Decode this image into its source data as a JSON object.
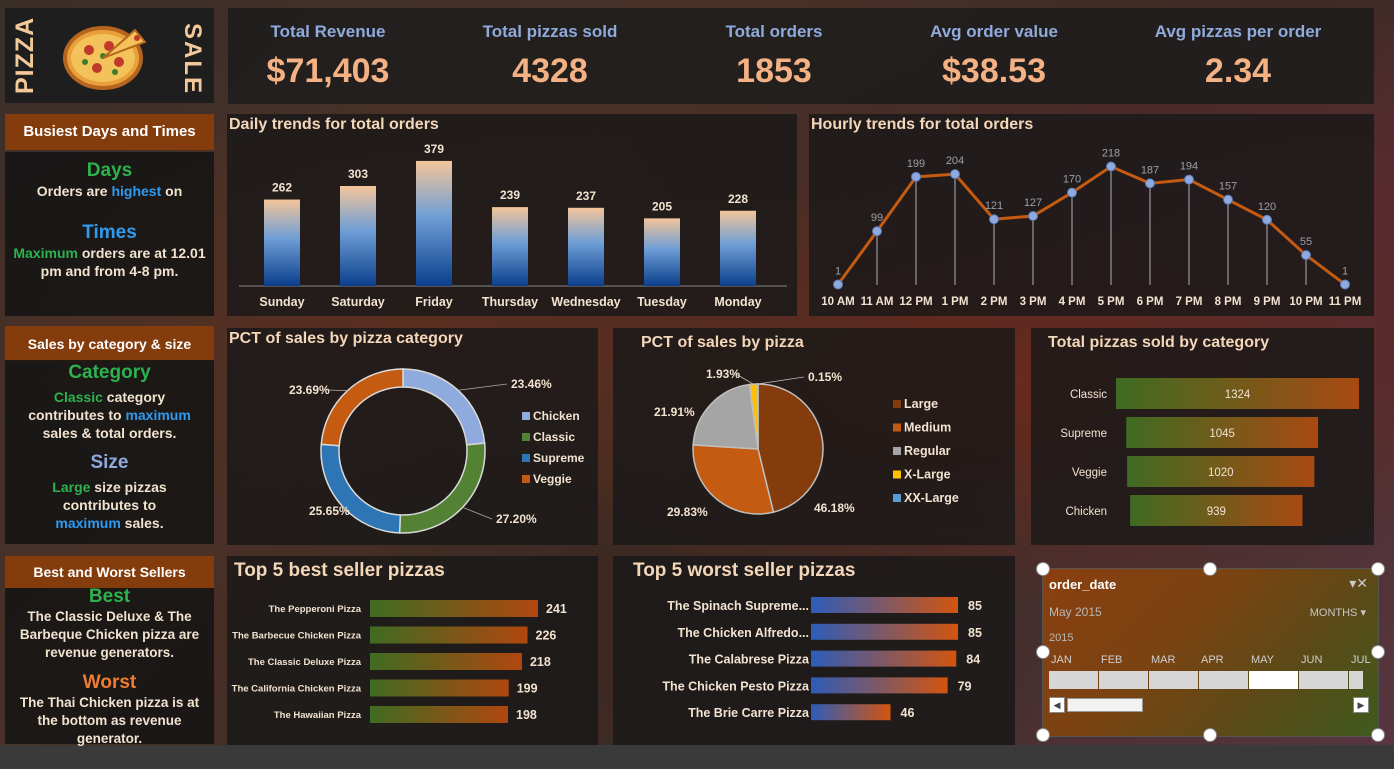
{
  "logo": {
    "left_text": "PIZZA",
    "right_text": "SALE"
  },
  "kpis": [
    {
      "label": "Total Revenue",
      "value": "$71,403"
    },
    {
      "label": "Total pizzas sold",
      "value": "4328"
    },
    {
      "label": "Total orders",
      "value": "1853"
    },
    {
      "label": "Avg order value",
      "value": "$38.53"
    },
    {
      "label": "Avg pizzas per order",
      "value": "2.34"
    }
  ],
  "sidebar": {
    "busiest": {
      "header": "Busiest Days and Times",
      "days_title": "Days",
      "days_text_1": "Orders are ",
      "days_text_hl": "highest",
      "days_text_2": " on",
      "times_title": "Times",
      "times_hl": "Maximum",
      "times_text": " orders are at 12.01 pm and from 4-8 pm."
    },
    "sales": {
      "header": "Sales by category & size",
      "category_title": "Category",
      "cat_hl": "Classic",
      "cat_text_1": " category contributes to ",
      "cat_hl2": "maximum",
      "cat_text_2": " sales & total orders.",
      "size_title": "Size",
      "size_hl": "Large",
      "size_text_1": " size pizzas contributes to ",
      "size_hl2": "maximum",
      "size_text_2": " sales."
    },
    "sellers": {
      "header": "Best and Worst Sellers",
      "best_title": "Best",
      "best_text": "The Classic Deluxe & The Barbeque Chicken pizza are revenue generators.",
      "worst_title": "Worst",
      "worst_text": "The Thai Chicken pizza is at the bottom as revenue generator."
    }
  },
  "chart_data": [
    {
      "type": "bar",
      "title": "Daily trends for total orders",
      "categories": [
        "Sunday",
        "Saturday",
        "Friday",
        "Thursday",
        "Wednesday",
        "Tuesday",
        "Monday"
      ],
      "values": [
        262,
        303,
        379,
        239,
        237,
        205,
        228
      ],
      "ylim": [
        0,
        400
      ]
    },
    {
      "type": "line",
      "title": "Hourly trends for total orders",
      "categories": [
        "10 AM",
        "11 AM",
        "12 PM",
        "1 PM",
        "2 PM",
        "3 PM",
        "4 PM",
        "5 PM",
        "6 PM",
        "7 PM",
        "8 PM",
        "9 PM",
        "10 PM",
        "11 PM"
      ],
      "values": [
        1,
        99,
        199,
        204,
        121,
        127,
        170,
        218,
        187,
        194,
        157,
        120,
        55,
        1
      ],
      "ylim": [
        0,
        230
      ]
    },
    {
      "type": "pie",
      "title": "PCT of sales by pizza category",
      "labels": [
        "Chicken",
        "Classic",
        "Supreme",
        "Veggie"
      ],
      "values": [
        23.46,
        27.2,
        25.65,
        23.69
      ],
      "value_labels": [
        "23.46%",
        "27.20%",
        "25.65%",
        "23.69%"
      ],
      "colors": [
        "#8faadc",
        "#548235",
        "#2e75b6",
        "#c55a11"
      ]
    },
    {
      "type": "pie",
      "title": "PCT of sales by pizza",
      "labels": [
        "Large",
        "Medium",
        "Regular",
        "X-Large",
        "XX-Large"
      ],
      "values": [
        46.18,
        29.83,
        21.91,
        1.93,
        0.15
      ],
      "value_labels": [
        "46.18%",
        "29.83%",
        "21.91%",
        "1.93%",
        "0.15%"
      ],
      "colors": [
        "#843c0c",
        "#c55a11",
        "#a5a5a5",
        "#ffc000",
        "#5b9bd5"
      ]
    },
    {
      "type": "bar",
      "title": "Total pizzas sold by category",
      "categories": [
        "Classic",
        "Supreme",
        "Veggie",
        "Chicken"
      ],
      "values": [
        1324,
        1045,
        1020,
        939
      ],
      "xlim": [
        0,
        1400
      ]
    },
    {
      "type": "bar",
      "title": "Top 5 best seller pizzas",
      "categories": [
        "The Pepperoni Pizza",
        "The Barbecue Chicken Pizza",
        "The Classic Deluxe Pizza",
        "The California Chicken Pizza",
        "The Hawaiian Pizza"
      ],
      "values": [
        241,
        226,
        218,
        199,
        198
      ],
      "xlim": [
        0,
        260
      ]
    },
    {
      "type": "bar",
      "title": "Top 5 worst seller pizzas",
      "categories": [
        "The Spinach Supreme...",
        "The Chicken Alfredo...",
        "The Calabrese Pizza",
        "The Chicken Pesto Pizza",
        "The Brie Carre Pizza"
      ],
      "values": [
        85,
        85,
        84,
        79,
        46
      ],
      "xlim": [
        0,
        90
      ]
    }
  ],
  "slicer": {
    "title": "order_date",
    "selection": "May 2015",
    "period": "MONTHS",
    "year": "2015",
    "months": [
      "JAN",
      "FEB",
      "MAR",
      "APR",
      "MAY",
      "JUN",
      "JUL"
    ],
    "selected_index": 4
  },
  "colors": {
    "accent": "#843c0c",
    "kpi_value": "#f4b183",
    "kpi_label": "#8faadc"
  }
}
